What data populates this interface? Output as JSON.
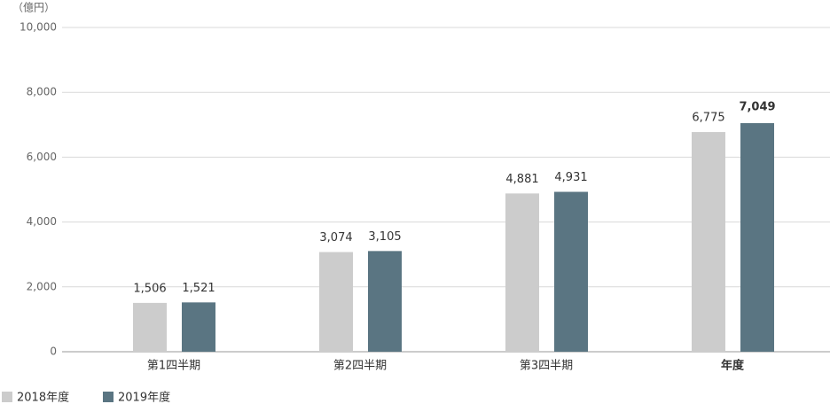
{
  "chart_data": {
    "type": "bar",
    "y_unit_label": "（億円）",
    "categories": [
      "第1四半期",
      "第2四半期",
      "第3四半期",
      "年度"
    ],
    "series": [
      {
        "name": "2018年度",
        "color": "#cccccc",
        "values": [
          1506,
          3074,
          4881,
          6775
        ],
        "value_labels": [
          "1,506",
          "3,074",
          "4,881",
          "6,775"
        ]
      },
      {
        "name": "2019年度",
        "color": "#5a7582",
        "values": [
          1521,
          3105,
          4931,
          7049
        ],
        "value_labels": [
          "1,521",
          "3,105",
          "4,931",
          "7,049"
        ]
      }
    ],
    "ylim": [
      0,
      10000
    ],
    "yticks": [
      0,
      {
        "value": 2000,
        "label": "2,000"
      },
      {
        "value": 4000,
        "label": "4,000"
      },
      {
        "value": 6000,
        "label": "6,000"
      },
      {
        "value": 8000,
        "label": "8,000"
      },
      {
        "value": 10000,
        "label": "10,000"
      }
    ],
    "grid": true
  }
}
